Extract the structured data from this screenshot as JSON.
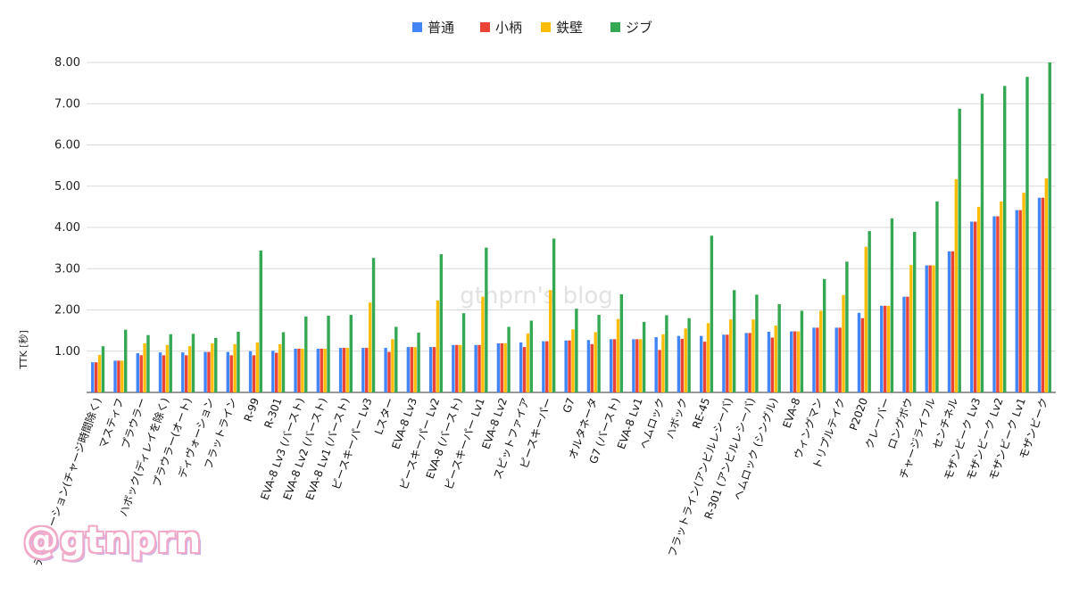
{
  "chart_data": {
    "type": "bar",
    "ylabel": "TTK [秒]",
    "ylim": [
      0,
      8
    ],
    "yticks": [
      "1.00",
      "2.00",
      "3.00",
      "4.00",
      "5.00",
      "6.00",
      "7.00",
      "8.00"
    ],
    "grid": true,
    "legend_position": "top",
    "colors": [
      "#4285f4",
      "#ea4335",
      "#fbbc04",
      "#34a853"
    ],
    "categories": [
      "ディヴォーション(チャージ時間除く)",
      "マスティフ",
      "プラウラー",
      "ハボック(ディレイを除く)",
      "プラウラー(オート)",
      "ディヴォーション",
      "フラットライン",
      "R-99",
      "R-301",
      "EVA-8 Lv3 (バースト)",
      "EVA-8 Lv2 (バースト)",
      "EVA-8 Lv1 (バースト)",
      "ピースキーパー Lv3",
      "Lスター",
      "EVA-8 Lv3",
      "ピースキーパー Lv2",
      "EVA-8 (バースト)",
      "ピースキーパー Lv1",
      "EVA-8 Lv2",
      "スピットファイア",
      "ピースキーパー",
      "G7",
      "オルタネータ",
      "G7 (バースト)",
      "EVA-8 Lv1",
      "ヘムロック",
      "ハボック",
      "RE-45",
      "フラットライン(アンビルレシーバ)",
      "R-301 (アンビルレシーバ)",
      "ヘムロック (シングル)",
      "EVA-8",
      "ウィングマン",
      "トリプルテイク",
      "P2020",
      "クレーバー",
      "ロングボウ",
      "チャージライフル",
      "センチネル",
      "モザンビーク Lv3",
      "モザンビーク Lv2",
      "モザンビーク Lv1",
      "モザンビーク"
    ],
    "series": [
      {
        "name": "普通",
        "values": [
          0.73,
          0.77,
          0.95,
          0.97,
          0.97,
          0.98,
          0.98,
          1.0,
          1.01,
          1.06,
          1.06,
          1.08,
          1.08,
          1.08,
          1.1,
          1.1,
          1.15,
          1.15,
          1.19,
          1.21,
          1.24,
          1.26,
          1.27,
          1.29,
          1.29,
          1.34,
          1.37,
          1.37,
          1.4,
          1.44,
          1.47,
          1.48,
          1.57,
          1.57,
          1.93,
          2.1,
          2.32,
          3.08,
          3.42,
          4.14,
          4.27,
          4.42,
          4.72
        ]
      },
      {
        "name": "小柄",
        "values": [
          0.73,
          0.77,
          0.9,
          0.9,
          0.9,
          0.98,
          0.9,
          0.9,
          0.96,
          1.06,
          1.06,
          1.08,
          1.08,
          0.98,
          1.1,
          1.1,
          1.15,
          1.15,
          1.19,
          1.1,
          1.24,
          1.26,
          1.17,
          1.29,
          1.29,
          1.03,
          1.3,
          1.23,
          1.4,
          1.44,
          1.33,
          1.48,
          1.57,
          1.57,
          1.8,
          2.1,
          2.32,
          3.08,
          3.42,
          4.14,
          4.27,
          4.42,
          4.72
        ]
      },
      {
        "name": "鉄壁",
        "values": [
          0.91,
          0.77,
          1.19,
          1.15,
          1.12,
          1.19,
          1.17,
          1.21,
          1.17,
          1.06,
          1.06,
          1.08,
          2.18,
          1.29,
          1.1,
          2.23,
          1.15,
          2.32,
          1.19,
          1.43,
          2.48,
          1.53,
          1.46,
          1.78,
          1.29,
          1.41,
          1.55,
          1.68,
          1.77,
          1.77,
          1.62,
          1.48,
          1.98,
          2.36,
          3.53,
          2.1,
          3.09,
          3.08,
          5.17,
          4.5,
          4.63,
          4.84,
          5.19
        ]
      },
      {
        "name": "ジブ",
        "values": [
          1.12,
          1.52,
          1.39,
          1.41,
          1.42,
          1.32,
          1.47,
          3.44,
          1.46,
          1.84,
          1.86,
          1.88,
          3.26,
          1.59,
          1.45,
          3.35,
          1.92,
          3.51,
          1.59,
          1.74,
          3.73,
          2.03,
          1.88,
          2.38,
          1.71,
          1.87,
          1.8,
          3.8,
          2.48,
          2.37,
          2.14,
          1.98,
          2.75,
          3.17,
          3.91,
          4.22,
          3.89,
          4.63,
          6.88,
          7.24,
          7.43,
          7.65,
          8.0
        ]
      }
    ]
  },
  "watermark": {
    "center": "gtnprn's blog",
    "corner": "@gtnprn"
  }
}
